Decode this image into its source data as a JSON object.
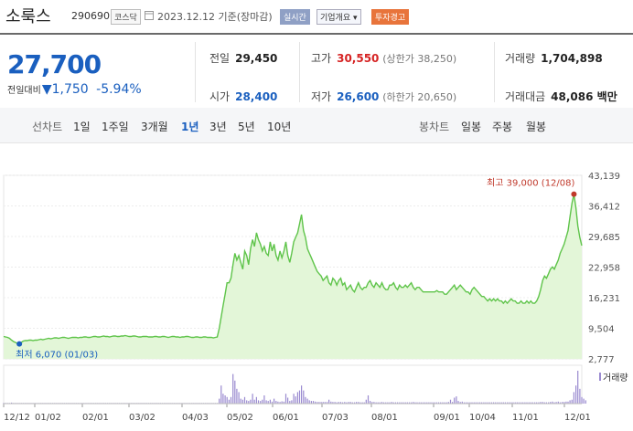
{
  "header": {
    "name": "소룩스",
    "code": "290690",
    "market": "코스닥",
    "date_label": "2023.12.12 기준(장마감)",
    "realtime_btn": "실시간",
    "company_btn": "기업개요",
    "warning_btn": "투자경고"
  },
  "quote": {
    "price": "27,700",
    "change_label": "전일대비",
    "change_symbol": "▼",
    "change": "1,750",
    "change_pct": "-5.94%"
  },
  "stats": {
    "prev_close": {
      "label": "전일",
      "value": "29,450"
    },
    "open": {
      "label": "시가",
      "value": "28,400"
    },
    "high": {
      "label": "고가",
      "value": "30,550",
      "sub": "(상한가 38,250)"
    },
    "low": {
      "label": "저가",
      "value": "26,600",
      "sub": "(하한가 20,650)"
    },
    "volume": {
      "label": "거래량",
      "value": "1,704,898"
    },
    "amount": {
      "label": "거래대금",
      "value": "48,086 백만"
    }
  },
  "tabs": {
    "line_label": "선차트",
    "periods": [
      "1일",
      "1주일",
      "3개월",
      "1년",
      "3년",
      "5년",
      "10년"
    ],
    "selected": "1년",
    "candle_label": "봉차트",
    "candle_periods": [
      "일봉",
      "주봉",
      "월봉"
    ]
  },
  "chart_data": {
    "type": "area",
    "title": "",
    "ylim": [
      2777,
      43139
    ],
    "y_ticks": [
      "43,139",
      "36,412",
      "29,685",
      "22,958",
      "16,231",
      "9,504",
      "2,777"
    ],
    "x_ticks": [
      "12/12",
      "01/02",
      "02/01",
      "03/02",
      "04/03",
      "05/02",
      "06/01",
      "07/03",
      "08/01",
      "09/01",
      "10/04",
      "11/01",
      "12/01"
    ],
    "max_label": "최고 39,000 (12/08)",
    "min_label": "최저 6,070 (01/03)",
    "volume_legend": "거래량",
    "colors": {
      "line": "#5fc44a",
      "fill": "#e3f6d8",
      "volume": "#9a8ad0",
      "max": "#c0392b",
      "min": "#1a5fbf"
    },
    "series": [
      {
        "values": [
          7700,
          7600,
          7500,
          7300,
          6900,
          6600,
          6400,
          6200,
          6070,
          6400,
          6700,
          6800,
          6800,
          6900,
          6900,
          6800,
          6900,
          6900,
          7000,
          7100,
          7000,
          7100,
          7200,
          7300,
          7200,
          7300,
          7400,
          7400,
          7300,
          7400,
          7500,
          7500,
          7400,
          7300,
          7400,
          7500,
          7500,
          7500,
          7400,
          7500,
          7500,
          7600,
          7600,
          7500,
          7500,
          7600,
          7700,
          7700,
          7600,
          7600,
          7700,
          7800,
          7700,
          7700,
          7600,
          7700,
          7800,
          7800,
          7700,
          7700,
          7800,
          7800,
          7900,
          7800,
          7700,
          7700,
          7800,
          7800,
          7700,
          7600,
          7600,
          7700,
          7700,
          7700,
          7600,
          7600,
          7600,
          7700,
          7700,
          7600,
          7600,
          7700,
          7700,
          7600,
          7500,
          7600,
          7700,
          7700,
          7600,
          7600,
          7500,
          7600,
          7600,
          7700,
          7700,
          7600,
          7500,
          7500,
          7600,
          7600,
          7500,
          7500,
          7600,
          7600,
          7500,
          7500,
          7500,
          7400,
          7500,
          7600,
          9500,
          12000,
          14500,
          17000,
          19500,
          19500,
          20500,
          23500,
          26000,
          24500,
          25500,
          24000,
          22500,
          26500,
          25500,
          23500,
          27000,
          29000,
          27500,
          30500,
          29000,
          28000,
          26500,
          27500,
          26000,
          25500,
          28500,
          26500,
          28000,
          25500,
          24500,
          26500,
          25000,
          26500,
          28500,
          25500,
          24000,
          26000,
          28500,
          29500,
          30500,
          32500,
          34500,
          31000,
          29500,
          27000,
          26000,
          25000,
          24000,
          23000,
          22000,
          21500,
          21000,
          20000,
          20500,
          21000,
          19500,
          19000,
          20500,
          20000,
          19000,
          20000,
          20500,
          19000,
          19500,
          18000,
          18500,
          19000,
          18000,
          17500,
          18500,
          19500,
          18500,
          18000,
          18500,
          18500,
          19500,
          20000,
          19000,
          18500,
          19500,
          19000,
          18500,
          19500,
          18500,
          18000,
          18000,
          19000,
          19000,
          19500,
          18500,
          18000,
          19000,
          18500,
          18500,
          19000,
          18500,
          19000,
          19500,
          18500,
          18000,
          18500,
          18500,
          18000,
          17500,
          17500,
          17500,
          17500,
          17500,
          17500,
          17500,
          17800,
          17500,
          17500,
          17500,
          17000,
          17000,
          17500,
          18000,
          18500,
          19000,
          18000,
          18500,
          19000,
          18500,
          18000,
          17500,
          17500,
          17000,
          18000,
          18500,
          18000,
          17500,
          17000,
          16500,
          16500,
          16000,
          15500,
          16000,
          15500,
          16000,
          15500,
          16000,
          15500,
          15500,
          15000,
          15500,
          15000,
          15500,
          16000,
          15500,
          15500,
          15000,
          15000,
          15500,
          15000,
          15000,
          15500,
          15000,
          15500,
          15000,
          15000,
          15500,
          16500,
          18000,
          20000,
          21000,
          20500,
          21500,
          22500,
          23000,
          22500,
          23500,
          24500,
          26000,
          27000,
          28000,
          29500,
          31000,
          34000,
          37000,
          39000,
          36000,
          32000,
          29450,
          27700
        ]
      }
    ],
    "volume": [
      0.02,
      0.02,
      0.02,
      0.02,
      0.03,
      0.02,
      0.02,
      0.02,
      0.02,
      0.02,
      0.02,
      0.02,
      0.02,
      0.02,
      0.02,
      0.02,
      0.02,
      0.02,
      0.02,
      0.02,
      0.02,
      0.02,
      0.02,
      0.02,
      0.02,
      0.02,
      0.02,
      0.02,
      0.02,
      0.02,
      0.02,
      0.02,
      0.02,
      0.02,
      0.02,
      0.02,
      0.02,
      0.02,
      0.02,
      0.02,
      0.02,
      0.02,
      0.02,
      0.02,
      0.02,
      0.02,
      0.02,
      0.02,
      0.02,
      0.02,
      0.02,
      0.02,
      0.02,
      0.02,
      0.02,
      0.02,
      0.02,
      0.02,
      0.02,
      0.02,
      0.02,
      0.02,
      0.02,
      0.02,
      0.02,
      0.02,
      0.02,
      0.02,
      0.02,
      0.02,
      0.02,
      0.02,
      0.02,
      0.02,
      0.02,
      0.02,
      0.02,
      0.02,
      0.02,
      0.02,
      0.02,
      0.02,
      0.02,
      0.02,
      0.02,
      0.02,
      0.02,
      0.02,
      0.02,
      0.02,
      0.02,
      0.02,
      0.02,
      0.02,
      0.02,
      0.02,
      0.02,
      0.02,
      0.02,
      0.02,
      0.02,
      0.02,
      0.02,
      0.02,
      0.02,
      0.02,
      0.02,
      0.02,
      0.02,
      0.02,
      0.15,
      0.55,
      0.3,
      0.25,
      0.2,
      0.12,
      0.2,
      0.9,
      0.7,
      0.45,
      0.35,
      0.15,
      0.12,
      0.2,
      0.1,
      0.08,
      0.12,
      0.3,
      0.12,
      0.2,
      0.1,
      0.08,
      0.12,
      0.25,
      0.1,
      0.08,
      0.12,
      0.06,
      0.15,
      0.08,
      0.06,
      0.05,
      0.07,
      0.06,
      0.3,
      0.18,
      0.08,
      0.1,
      0.3,
      0.22,
      0.35,
      0.4,
      0.55,
      0.4,
      0.2,
      0.15,
      0.1,
      0.08,
      0.08,
      0.06,
      0.05,
      0.05,
      0.05,
      0.05,
      0.05,
      0.05,
      0.12,
      0.06,
      0.05,
      0.05,
      0.04,
      0.05,
      0.05,
      0.04,
      0.05,
      0.04,
      0.05,
      0.05,
      0.04,
      0.04,
      0.05,
      0.05,
      0.04,
      0.04,
      0.04,
      0.12,
      0.25,
      0.08,
      0.05,
      0.05,
      0.04,
      0.04,
      0.04,
      0.05,
      0.04,
      0.04,
      0.04,
      0.04,
      0.05,
      0.04,
      0.04,
      0.04,
      0.04,
      0.04,
      0.04,
      0.04,
      0.04,
      0.04,
      0.04,
      0.05,
      0.04,
      0.04,
      0.04,
      0.04,
      0.04,
      0.04,
      0.04,
      0.04,
      0.04,
      0.04,
      0.04,
      0.04,
      0.04,
      0.04,
      0.04,
      0.04,
      0.04,
      0.05,
      0.12,
      0.05,
      0.18,
      0.22,
      0.08,
      0.05,
      0.06,
      0.04,
      0.04,
      0.04,
      0.04,
      0.04,
      0.04,
      0.04,
      0.04,
      0.04,
      0.04,
      0.04,
      0.04,
      0.04,
      0.04,
      0.04,
      0.04,
      0.04,
      0.04,
      0.04,
      0.04,
      0.04,
      0.04,
      0.04,
      0.04,
      0.04,
      0.04,
      0.04,
      0.04,
      0.04,
      0.04,
      0.04,
      0.04,
      0.04,
      0.04,
      0.04,
      0.04,
      0.04,
      0.04,
      0.04,
      0.05,
      0.05,
      0.04,
      0.04,
      0.04,
      0.05,
      0.06,
      0.04,
      0.05,
      0.06,
      0.04,
      0.05,
      0.05,
      0.06,
      0.06,
      0.1,
      0.12,
      0.35,
      0.55,
      1.0,
      0.45,
      0.2,
      0.15,
      0.1
    ]
  }
}
